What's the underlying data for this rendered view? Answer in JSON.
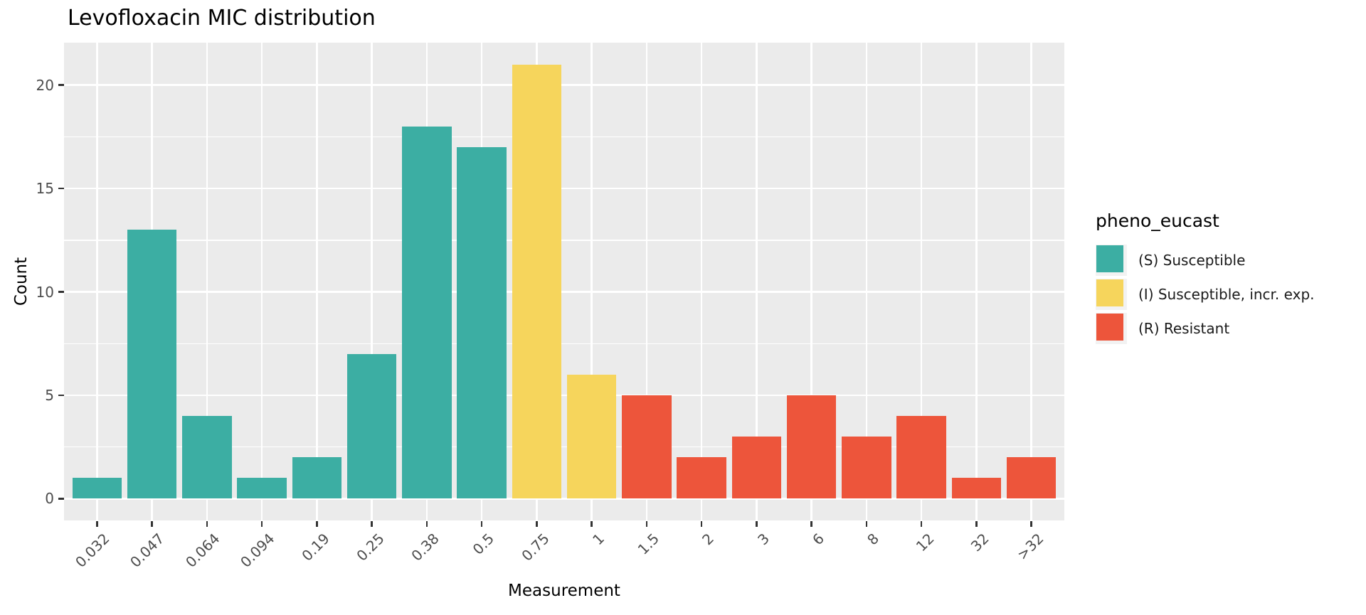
{
  "chart_data": {
    "type": "bar",
    "title": "Levofloxacin MIC distribution",
    "xlabel": "Measurement",
    "ylabel": "Count",
    "categories": [
      "0.032",
      "0.047",
      "0.064",
      "0.094",
      "0.19",
      "0.25",
      "0.38",
      "0.5",
      "0.75",
      "1",
      "1.5",
      "2",
      "3",
      "6",
      "8",
      "12",
      "32",
      ">32"
    ],
    "values": [
      1,
      13,
      4,
      1,
      2,
      7,
      18,
      17,
      21,
      6,
      5,
      2,
      3,
      5,
      3,
      4,
      1,
      2
    ],
    "phenotypes": [
      "S",
      "S",
      "S",
      "S",
      "S",
      "S",
      "S",
      "S",
      "I",
      "I",
      "R",
      "R",
      "R",
      "R",
      "R",
      "R",
      "R",
      "R"
    ],
    "y_ticks": [
      0,
      5,
      10,
      15,
      20
    ],
    "y_minor_ticks": [
      2.5,
      7.5,
      12.5,
      17.5
    ],
    "ylim": [
      -1.05,
      22.05
    ],
    "grid": true,
    "legend": {
      "title": "pheno_eucast",
      "position": "right",
      "entries": [
        {
          "label": "(S) Susceptible",
          "key": "S",
          "color": "#3CAEA3"
        },
        {
          "label": "(I) Susceptible, incr. exp.",
          "key": "I",
          "color": "#F6D55C"
        },
        {
          "label": "(R) Resistant",
          "key": "R",
          "color": "#ED553B"
        }
      ]
    },
    "colors": {
      "S": "#3CAEA3",
      "I": "#F6D55C",
      "R": "#ED553B"
    },
    "theme": {
      "panel_bg": "#EBEBEB",
      "grid_color": "#FFFFFF",
      "legend_key_bg": "#F2F2F2",
      "axis_text_color": "#4D4D4D",
      "tick_color": "#333333",
      "text_color": "#000000"
    }
  }
}
